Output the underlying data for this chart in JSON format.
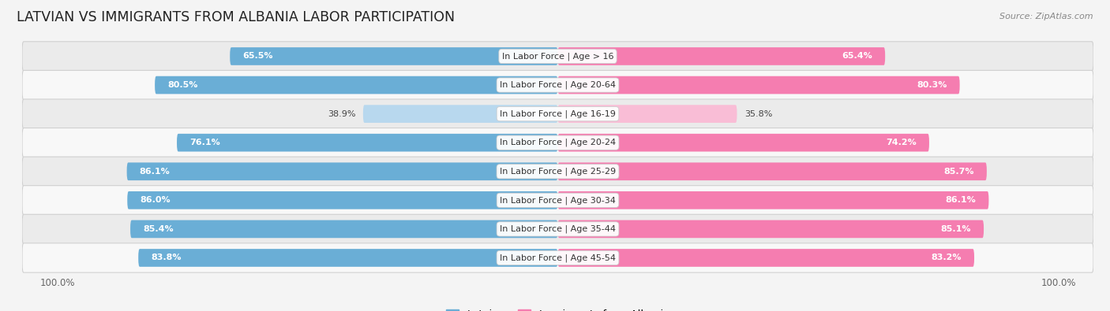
{
  "title": "LATVIAN VS IMMIGRANTS FROM ALBANIA LABOR PARTICIPATION",
  "source": "Source: ZipAtlas.com",
  "categories": [
    "In Labor Force | Age > 16",
    "In Labor Force | Age 20-64",
    "In Labor Force | Age 16-19",
    "In Labor Force | Age 20-24",
    "In Labor Force | Age 25-29",
    "In Labor Force | Age 30-34",
    "In Labor Force | Age 35-44",
    "In Labor Force | Age 45-54"
  ],
  "latvian_values": [
    65.5,
    80.5,
    38.9,
    76.1,
    86.1,
    86.0,
    85.4,
    83.8
  ],
  "albania_values": [
    65.4,
    80.3,
    35.8,
    74.2,
    85.7,
    86.1,
    85.1,
    83.2
  ],
  "latvian_color_full": "#6aaed6",
  "latvian_color_light": "#b8d8ee",
  "albania_color_full": "#f57db0",
  "albania_color_light": "#f9bdd6",
  "bar_height": 0.62,
  "row_bg_color_odd": "#ebebeb",
  "row_bg_color_even": "#f8f8f8",
  "label_fontsize": 8.0,
  "value_fontsize": 8.0,
  "title_fontsize": 12.5,
  "legend_fontsize": 9.5,
  "xlabel_fontsize": 8.5,
  "threshold_full": 60,
  "background_color": "#f4f4f4"
}
